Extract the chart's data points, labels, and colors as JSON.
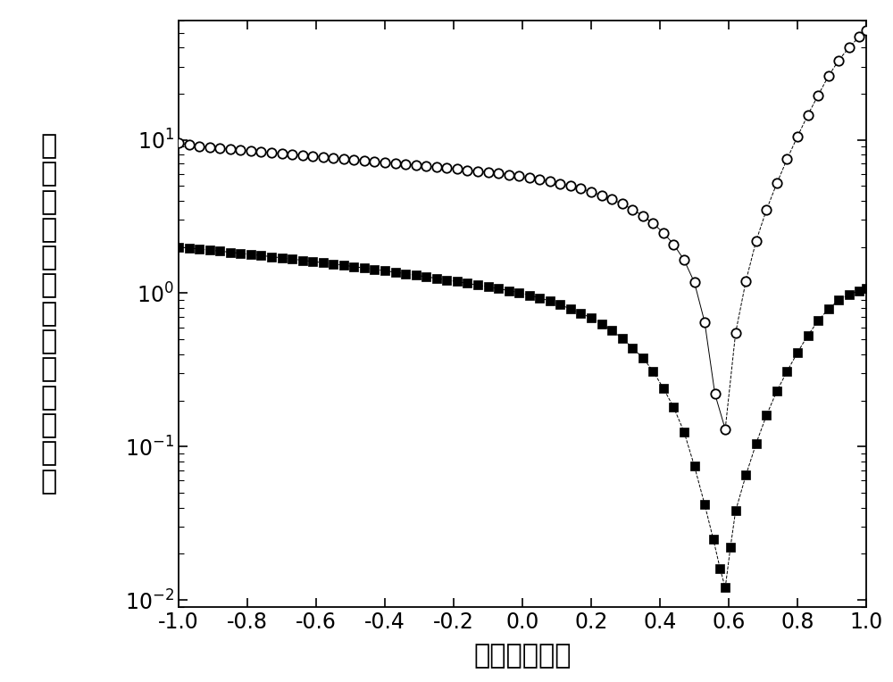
{
  "xlim": [
    -1.0,
    1.0
  ],
  "ylim_log": [
    0.009,
    60
  ],
  "xticks": [
    -1.0,
    -0.8,
    -0.6,
    -0.4,
    -0.2,
    0.0,
    0.2,
    0.4,
    0.6,
    0.8,
    1.0
  ],
  "background_color": "#ffffff",
  "ylabel_text": "电\n流\n密\n度\n（\n毫\n安\n每\n平\n方\n厘\n米\n）",
  "xlabel_text": "电压（伏特）",
  "fontsize_label": 22,
  "fontsize_tick": 17,
  "circle_series": {
    "x": [
      -1.0,
      -0.97,
      -0.94,
      -0.91,
      -0.88,
      -0.85,
      -0.82,
      -0.79,
      -0.76,
      -0.73,
      -0.7,
      -0.67,
      -0.64,
      -0.61,
      -0.58,
      -0.55,
      -0.52,
      -0.49,
      -0.46,
      -0.43,
      -0.4,
      -0.37,
      -0.34,
      -0.31,
      -0.28,
      -0.25,
      -0.22,
      -0.19,
      -0.16,
      -0.13,
      -0.1,
      -0.07,
      -0.04,
      -0.01,
      0.02,
      0.05,
      0.08,
      0.11,
      0.14,
      0.17,
      0.2,
      0.23,
      0.26,
      0.29,
      0.32,
      0.35,
      0.38,
      0.41,
      0.44,
      0.47,
      0.5,
      0.53,
      0.56,
      0.59,
      0.62,
      0.65,
      0.68,
      0.71,
      0.74,
      0.77,
      0.8,
      0.83,
      0.86,
      0.89,
      0.92,
      0.95,
      0.98,
      1.0
    ],
    "y": [
      9.5,
      9.3,
      9.1,
      8.95,
      8.8,
      8.7,
      8.58,
      8.47,
      8.36,
      8.25,
      8.15,
      8.05,
      7.95,
      7.85,
      7.75,
      7.65,
      7.55,
      7.45,
      7.35,
      7.25,
      7.15,
      7.05,
      6.95,
      6.85,
      6.75,
      6.65,
      6.55,
      6.45,
      6.35,
      6.25,
      6.15,
      6.05,
      5.92,
      5.8,
      5.65,
      5.5,
      5.35,
      5.18,
      5.0,
      4.8,
      4.58,
      4.35,
      4.1,
      3.82,
      3.52,
      3.2,
      2.85,
      2.48,
      2.08,
      1.65,
      1.18,
      0.65,
      0.22,
      0.13,
      0.55,
      1.2,
      2.2,
      3.5,
      5.2,
      7.5,
      10.5,
      14.5,
      19.5,
      26.0,
      33.0,
      40.0,
      47.0,
      52.0
    ]
  },
  "square_series": {
    "x": [
      -1.0,
      -0.97,
      -0.94,
      -0.91,
      -0.88,
      -0.85,
      -0.82,
      -0.79,
      -0.76,
      -0.73,
      -0.7,
      -0.67,
      -0.64,
      -0.61,
      -0.58,
      -0.55,
      -0.52,
      -0.49,
      -0.46,
      -0.43,
      -0.4,
      -0.37,
      -0.34,
      -0.31,
      -0.28,
      -0.25,
      -0.22,
      -0.19,
      -0.16,
      -0.13,
      -0.1,
      -0.07,
      -0.04,
      -0.01,
      0.02,
      0.05,
      0.08,
      0.11,
      0.14,
      0.17,
      0.2,
      0.23,
      0.26,
      0.29,
      0.32,
      0.35,
      0.38,
      0.41,
      0.44,
      0.47,
      0.5,
      0.53,
      0.555,
      0.575,
      0.59,
      0.605,
      0.62,
      0.65,
      0.68,
      0.71,
      0.74,
      0.77,
      0.8,
      0.83,
      0.86,
      0.89,
      0.92,
      0.95,
      0.98,
      1.0
    ],
    "y": [
      2.0,
      1.97,
      1.94,
      1.91,
      1.88,
      1.85,
      1.82,
      1.79,
      1.76,
      1.73,
      1.7,
      1.67,
      1.64,
      1.61,
      1.58,
      1.55,
      1.52,
      1.49,
      1.46,
      1.43,
      1.4,
      1.37,
      1.34,
      1.31,
      1.28,
      1.25,
      1.22,
      1.19,
      1.16,
      1.13,
      1.1,
      1.07,
      1.04,
      1.01,
      0.97,
      0.93,
      0.89,
      0.84,
      0.79,
      0.74,
      0.69,
      0.63,
      0.57,
      0.51,
      0.44,
      0.38,
      0.31,
      0.24,
      0.18,
      0.125,
      0.075,
      0.042,
      0.025,
      0.016,
      0.012,
      0.022,
      0.038,
      0.065,
      0.105,
      0.16,
      0.23,
      0.31,
      0.41,
      0.53,
      0.66,
      0.79,
      0.9,
      0.98,
      1.04,
      1.08
    ]
  }
}
